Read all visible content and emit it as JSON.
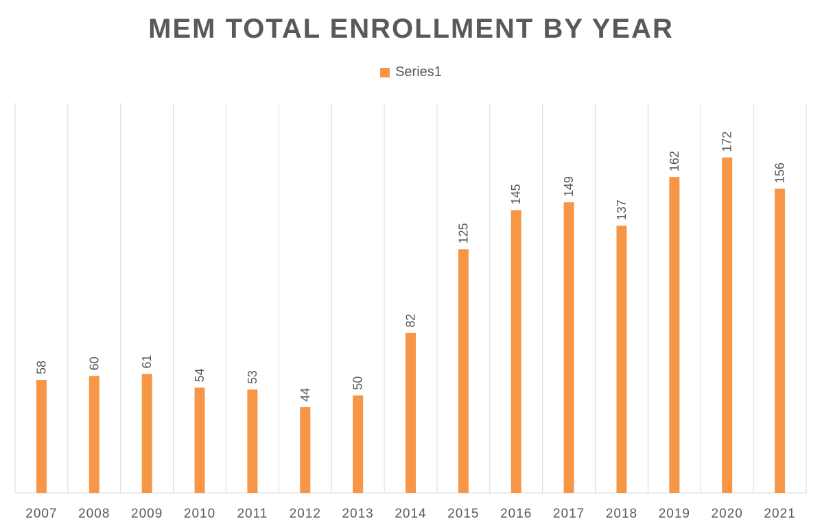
{
  "chart_data": {
    "type": "bar",
    "title": "MEM TOTAL ENROLLMENT BY YEAR",
    "xlabel": "",
    "ylabel": "",
    "categories": [
      "2007",
      "2008",
      "2009",
      "2010",
      "2011",
      "2012",
      "2013",
      "2014",
      "2015",
      "2016",
      "2017",
      "2018",
      "2019",
      "2020",
      "2021"
    ],
    "series": [
      {
        "name": "Series1",
        "values": [
          58,
          60,
          61,
          54,
          53,
          44,
          50,
          82,
          125,
          145,
          149,
          137,
          162,
          172,
          156
        ],
        "color": "#F79646"
      }
    ],
    "ylim": [
      0,
      200
    ],
    "legend": "top",
    "grid": "vertical category separators",
    "data_labels": true,
    "y_axis_visible": false
  }
}
